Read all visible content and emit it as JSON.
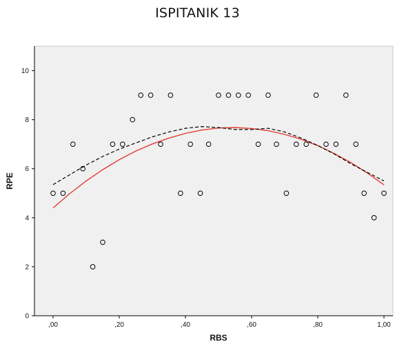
{
  "chart_data": {
    "type": "scatter",
    "title": "ISPITANIK 13",
    "xlabel": "RBS",
    "ylabel": "RPE",
    "xlim": [
      0,
      1
    ],
    "ylim": [
      0,
      11
    ],
    "xticks": [
      0,
      0.2,
      0.4,
      0.6,
      0.8,
      1.0
    ],
    "xtick_labels": [
      ",00",
      ",20",
      ",40",
      ",60",
      ",80",
      "1,00"
    ],
    "yticks": [
      0,
      2,
      4,
      6,
      8,
      10
    ],
    "ytick_labels": [
      "0",
      "2",
      "4",
      "6",
      "8",
      "10"
    ],
    "grid": false,
    "legend": "none",
    "colors": {
      "plot_background": "#f0f0f0",
      "marker_edge": "#000000",
      "fit_line": "#e03c31",
      "loess_line": "#000000",
      "axis": "#000000"
    },
    "series": [
      {
        "type": "scatter",
        "marker": "open-circle",
        "x": [
          0.0,
          0.03,
          0.06,
          0.09,
          0.12,
          0.15,
          0.18,
          0.21,
          0.24,
          0.265,
          0.295,
          0.325,
          0.355,
          0.385,
          0.415,
          0.445,
          0.47,
          0.5,
          0.53,
          0.56,
          0.59,
          0.62,
          0.65,
          0.675,
          0.705,
          0.735,
          0.765,
          0.795,
          0.825,
          0.855,
          0.885,
          0.915,
          0.94,
          0.97,
          1.0
        ],
        "y": [
          5,
          5,
          7,
          6,
          2,
          3,
          7,
          7,
          8,
          9,
          9,
          7,
          9,
          5,
          7,
          5,
          7,
          9,
          9,
          9,
          9,
          7,
          9,
          7,
          5,
          7,
          7,
          9,
          7,
          7,
          9,
          7,
          5,
          4,
          5
        ]
      },
      {
        "type": "line",
        "style": "solid",
        "x": [
          0.0,
          0.05,
          0.1,
          0.15,
          0.2,
          0.25,
          0.3,
          0.35,
          0.4,
          0.45,
          0.5,
          0.55,
          0.6,
          0.65,
          0.7,
          0.75,
          0.8,
          0.85,
          0.9,
          0.95,
          1.0
        ],
        "y": [
          4.4,
          4.98,
          5.5,
          5.96,
          6.37,
          6.72,
          7.01,
          7.25,
          7.44,
          7.58,
          7.66,
          7.68,
          7.64,
          7.55,
          7.4,
          7.2,
          6.94,
          6.62,
          6.25,
          5.82,
          5.34
        ]
      },
      {
        "type": "line",
        "style": "dashed",
        "x": [
          0.0,
          0.05,
          0.1,
          0.15,
          0.2,
          0.25,
          0.3,
          0.35,
          0.4,
          0.45,
          0.5,
          0.55,
          0.6,
          0.65,
          0.7,
          0.75,
          0.8,
          0.85,
          0.9,
          0.95,
          1.0
        ],
        "y": [
          5.35,
          5.75,
          6.15,
          6.5,
          6.8,
          7.05,
          7.3,
          7.5,
          7.65,
          7.72,
          7.68,
          7.6,
          7.6,
          7.65,
          7.5,
          7.25,
          6.95,
          6.6,
          6.2,
          5.85,
          5.5
        ]
      }
    ]
  }
}
